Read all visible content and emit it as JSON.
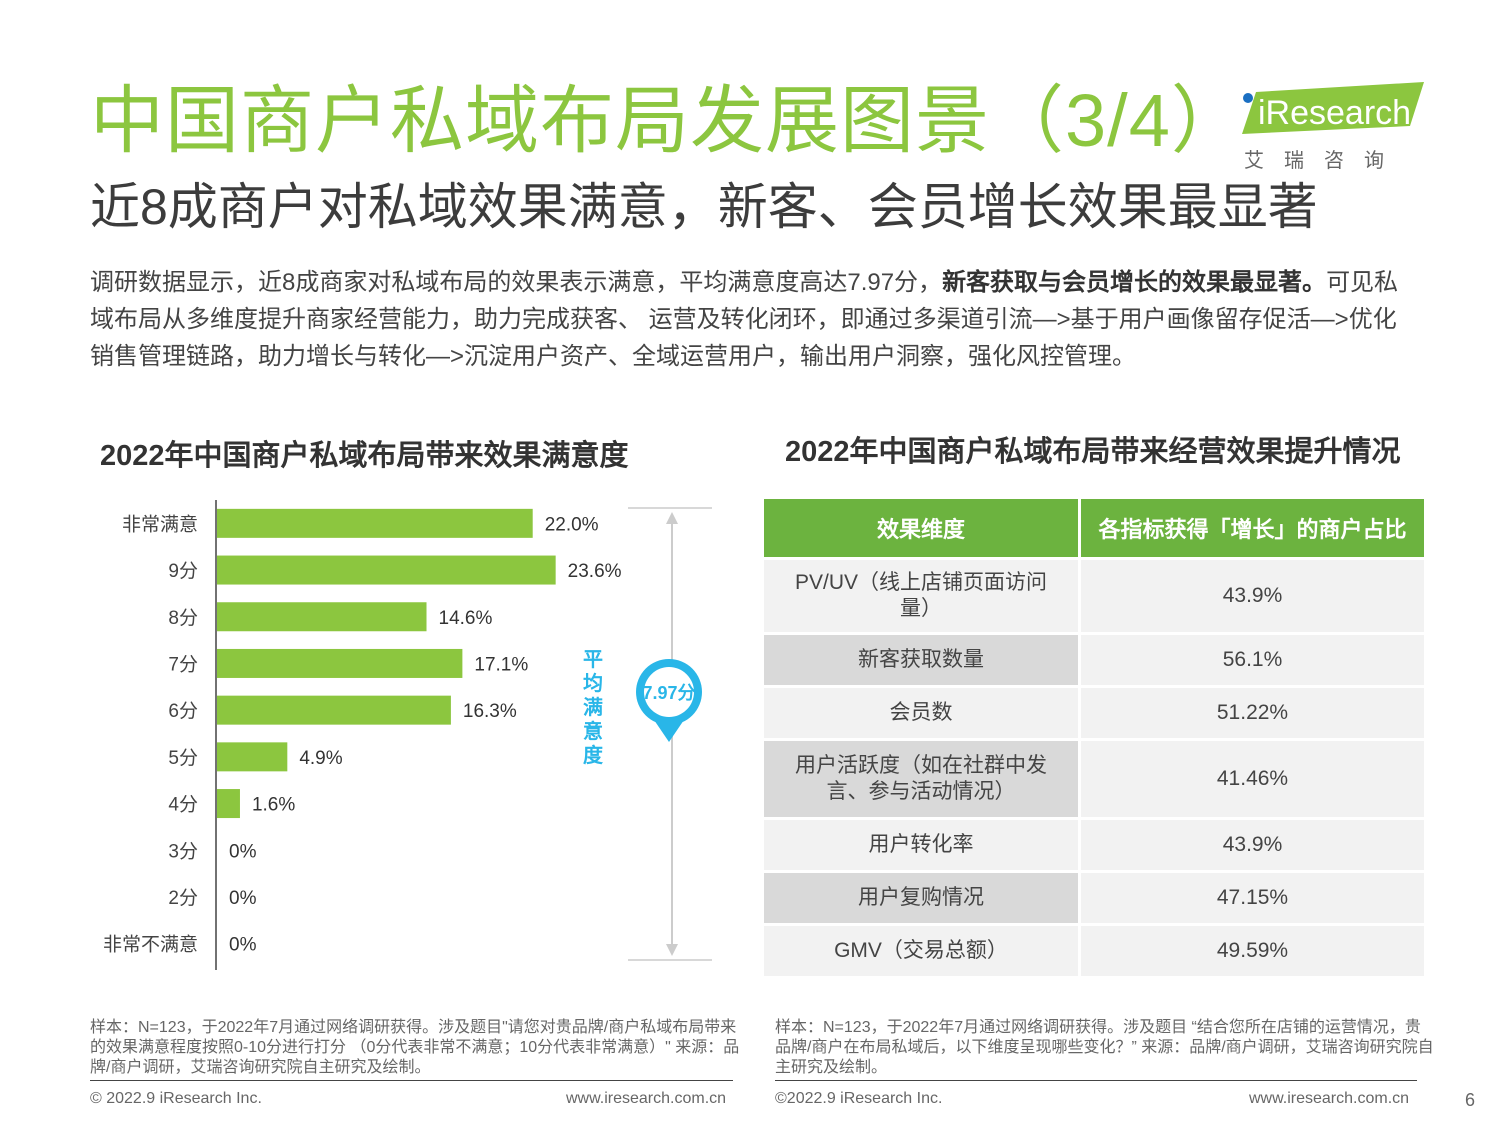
{
  "header": {
    "title": "中国商户私域布局发展图景（3/4）",
    "subtitle": "近8成商户对私域效果满意，新客、会员增长效果最显著",
    "logo_brand": "iResearch",
    "logo_cn": "艾瑞咨询"
  },
  "intro": {
    "part1": "调研数据显示，近8成商家对私域布局的效果表示满意，平均满意度高达7.97分，",
    "bold": "新客获取与会员增长的效果最显著。",
    "part2": "可见私域布局从多维度提升商家经营能力，助力完成获客、 运营及转化闭环，即通过多渠道引流—>基于用户画像留存促活—>优化销售管理链路，助力增长与转化—>沉淀用户资产、全域运营用户，输出用户洞察，强化风控管理。"
  },
  "chart_data": [
    {
      "type": "bar",
      "orientation": "horizontal",
      "title": "2022年中国商户私域布局带来效果满意度",
      "categories": [
        "非常满意",
        "9分",
        "8分",
        "7分",
        "6分",
        "5分",
        "4分",
        "3分",
        "2分",
        "非常不满意"
      ],
      "values": [
        22.0,
        23.6,
        14.6,
        17.1,
        16.3,
        4.9,
        1.6,
        0,
        0,
        0
      ],
      "value_labels": [
        "22.0%",
        "23.6%",
        "14.6%",
        "17.1%",
        "16.3%",
        "4.9%",
        "1.6%",
        "0%",
        "0%",
        "0%"
      ],
      "bar_color": "#8cc63f",
      "annotation": {
        "label": "平均满意度",
        "value": "7.97分",
        "color": "#29b6e8"
      }
    },
    {
      "type": "table",
      "title": "2022年中国商户私域布局带来经营效果提升情况",
      "columns": [
        "效果维度",
        "各指标获得「增长」的商户占比"
      ],
      "rows": [
        [
          "PV/UV（线上店铺页面访问量）",
          "43.9%"
        ],
        [
          "新客获取数量",
          "56.1%"
        ],
        [
          "会员数",
          "51.22%"
        ],
        [
          "用户活跃度（如在社群中发言、参与活动情况）",
          "41.46%"
        ],
        [
          "用户转化率",
          "43.9%"
        ],
        [
          "用户复购情况",
          "47.15%"
        ],
        [
          "GMV（交易总额）",
          "49.59%"
        ]
      ],
      "header_color": "#6cb33f"
    }
  ],
  "notes": {
    "left": "样本：N=123，于2022年7月通过网络调研获得。涉及题目\"请您对贵品牌/商户私域布局带来的效果满意程度按照0-10分进行打分 （0分代表非常不满意；10分代表非常满意）\" 来源：品牌/商户调研，艾瑞咨询研究院自主研究及绘制。",
    "right": "样本：N=123，于2022年7月通过网络调研获得。涉及题目 “结合您所在店铺的运营情况，贵品牌/商户在布局私域后，以下维度呈现哪些变化？” 来源：品牌/商户调研，艾瑞咨询研究院自主研究及绘制。"
  },
  "footer": {
    "left_copyright": "© 2022.9 iResearch Inc.",
    "left_url": "www.iresearch.com.cn",
    "right_copyright": "©2022.9 iResearch Inc.",
    "right_url": "www.iresearch.com.cn",
    "page_number": "6"
  }
}
